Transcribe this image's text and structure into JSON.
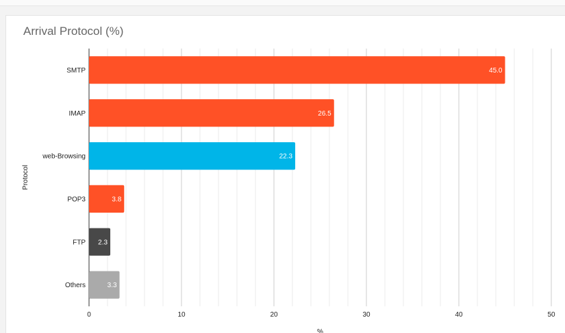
{
  "chart_data": {
    "type": "bar",
    "orientation": "horizontal",
    "title": "Arrival Protocol (%)",
    "xlabel": "%",
    "ylabel": "Protocol",
    "xlim": [
      0,
      50
    ],
    "x_ticks": [
      0,
      10,
      20,
      30,
      40,
      50
    ],
    "grid": true,
    "categories": [
      "SMTP",
      "IMAP",
      "web-Browsing",
      "POP3",
      "FTP",
      "Others"
    ],
    "values": [
      45.0,
      26.5,
      22.3,
      3.8,
      2.3,
      3.3
    ],
    "value_labels": [
      "45.0",
      "26.5",
      "22.3",
      "3.8",
      "2.3",
      "3.3"
    ],
    "colors": [
      "#ff5126",
      "#ff5126",
      "#00b5e8",
      "#ff5126",
      "#484848",
      "#aaaaaa"
    ]
  }
}
